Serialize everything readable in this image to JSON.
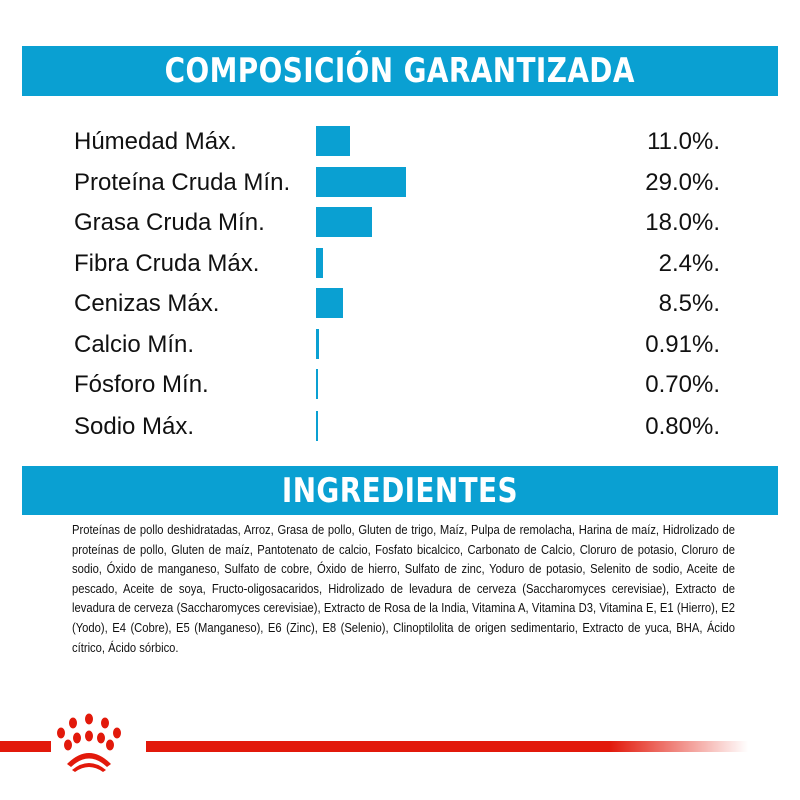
{
  "composition": {
    "title": "COMPOSICIÓN GARANTIZADA",
    "accent_color": "#0aa0d2",
    "rows": [
      {
        "label": "Húmedad Máx.",
        "value": "11.0%.",
        "percent": 11.0
      },
      {
        "label": "Proteína Cruda Mín.",
        "value": "29.0%.",
        "percent": 29.0
      },
      {
        "label": "Grasa Cruda Mín.",
        "value": "18.0%.",
        "percent": 18.0
      },
      {
        "label": "Fibra Cruda Máx.",
        "value": "2.4%.",
        "percent": 2.4
      },
      {
        "label": "Cenizas Máx.",
        "value": "8.5%.",
        "percent": 8.5
      },
      {
        "label": "Calcio Mín.",
        "value": "0.91%.",
        "percent": 0.91
      },
      {
        "label": "Fósforo Mín.",
        "value": "0.70%.",
        "percent": 0.7
      },
      {
        "label": "Sodio Máx.",
        "value": "0.80%.",
        "percent": 0.8
      }
    ]
  },
  "ingredients": {
    "title": "INGREDIENTES",
    "text": "Proteínas de pollo deshidratadas, Arroz, Grasa de pollo, Gluten de trigo, Maíz, Pulpa de remolacha, Harina de maíz, Hidrolizado de proteínas de pollo, Gluten de maíz, Pantotenato de calcio, Fosfato bicalcico, Carbonato de Calcio, Cloruro de potasio, Cloruro de sodio, Óxido de manganeso, Sulfato de cobre, Óxido de hierro, Sulfato de zinc, Yoduro de potasio, Selenito de sodio, Aceite de pescado, Aceite de soya, Fructo-oligosacaridos, Hidrolizado de levadura de cerveza (Saccharomyces cerevisiae), Extracto de levadura de cerveza (Saccharomyces cerevisiae), Extracto de Rosa de la India, Vitamina A, Vitamina D3, Vitamina E, E1 (Hierro), E2 (Yodo), E4 (Cobre), E5 (Manganeso), E6 (Zinc), E8 (Selenio), Clinoptilolita de origen sedimentario, Extracto de yuca, BHA, Ácido cítrico, Ácido sórbico."
  },
  "footer": {
    "logo_icon": "royal-canin-crown-icon",
    "brand_color": "#e2190b"
  }
}
